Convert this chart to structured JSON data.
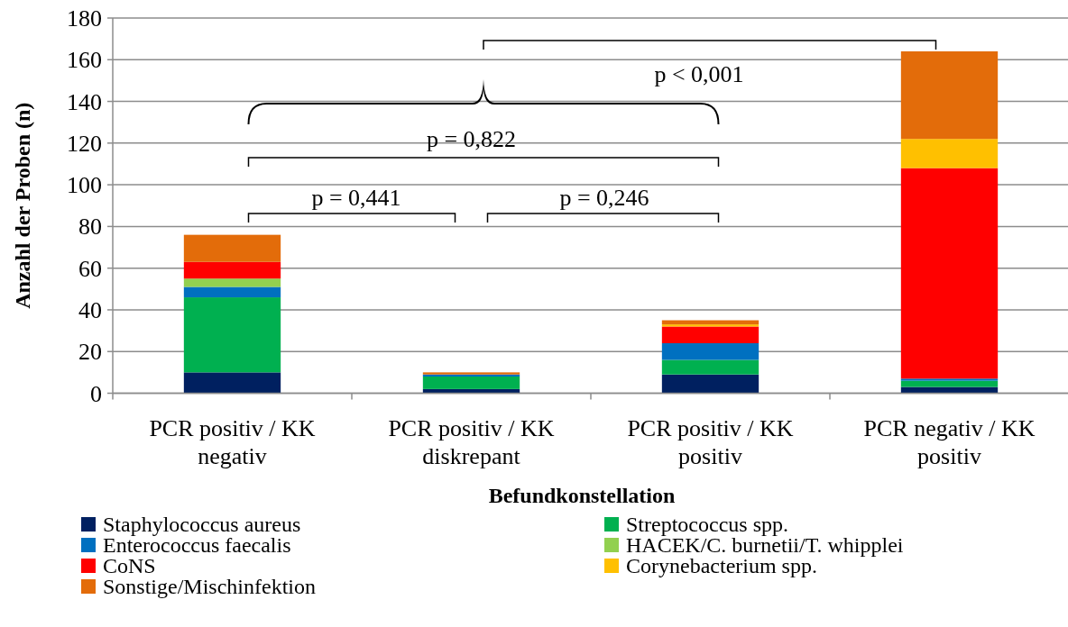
{
  "chart_data": {
    "type": "bar",
    "stacked": true,
    "xlabel": "Befundkonstellation",
    "ylabel": "Anzahl der Proben (n)",
    "categories": [
      "PCR positiv / KK negativ",
      "PCR positiv / KK diskrepant",
      "PCR positiv / KK positiv",
      "PCR negativ / KK positiv"
    ],
    "series": [
      {
        "name": "Staphylococcus aureus",
        "color": "#002060",
        "values": [
          10,
          2,
          9,
          3
        ]
      },
      {
        "name": "Streptococcus spp.",
        "color": "#00b050",
        "values": [
          36,
          6,
          7,
          3
        ]
      },
      {
        "name": "Enterococcus faecalis",
        "color": "#0070c0",
        "values": [
          5,
          1,
          8,
          1
        ]
      },
      {
        "name": "HACEK/C. burnetii/T. whipplei",
        "color": "#92d050",
        "values": [
          4,
          0,
          0,
          0
        ]
      },
      {
        "name": "CoNS",
        "color": "#ff0000",
        "values": [
          8,
          0,
          8,
          101
        ]
      },
      {
        "name": "Corynebacterium spp.",
        "color": "#ffc000",
        "values": [
          0,
          0,
          1,
          14
        ]
      },
      {
        "name": "Sonstige/Mischinfektion",
        "color": "#e36c0a",
        "values": [
          13,
          1,
          2,
          42
        ]
      }
    ],
    "ylim": [
      0,
      180
    ],
    "yticks": [
      0,
      20,
      40,
      60,
      80,
      100,
      120,
      140,
      160,
      180
    ],
    "grid": "y",
    "legend": "bottom",
    "annotations": [
      "p = 0,441",
      "p = 0,246",
      "p = 0,822",
      "p < 0,001"
    ]
  }
}
